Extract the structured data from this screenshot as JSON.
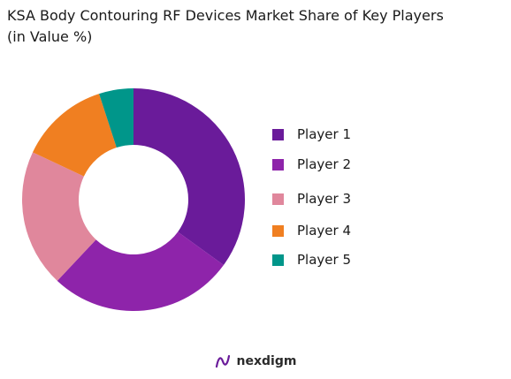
{
  "title": {
    "line1": "KSA Body Contouring RF Devices Market Share of Key Players",
    "line2": "(in Value %)"
  },
  "chart_data": {
    "type": "pie",
    "variant": "donut",
    "title": "KSA Body Contouring RF Devices Market Share of Key Players (in Value %)",
    "categories": [
      "Player 1",
      "Player 2",
      "Player 3",
      "Player 4",
      "Player 5"
    ],
    "values": [
      35,
      27,
      20,
      13,
      5
    ],
    "colors": [
      "#6a1b9a",
      "#8e24aa",
      "#e0879c",
      "#f07f21",
      "#00968a"
    ],
    "legend_position": "right"
  },
  "brand": {
    "name": "nexdigm",
    "icon": "nexdigm-logo-icon"
  }
}
